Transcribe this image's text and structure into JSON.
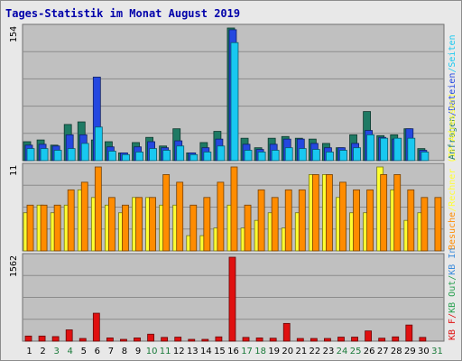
{
  "chart_data": {
    "type": "bar",
    "title": "Tages-Statistik im Monat August 2019",
    "x": [
      "1",
      "2",
      "3",
      "4",
      "5",
      "6",
      "7",
      "8",
      "9",
      "10",
      "11",
      "12",
      "13",
      "14",
      "15",
      "16",
      "17",
      "18",
      "19",
      "20",
      "21",
      "22",
      "23",
      "24",
      "25",
      "26",
      "27",
      "28",
      "29",
      "30",
      "31"
    ],
    "weekend_days": [
      "3",
      "4",
      "10",
      "11",
      "17",
      "18",
      "24",
      "25",
      "31"
    ],
    "colors": {
      "anfragen": "#1e7a64",
      "dateien": "#2448e0",
      "seiten": "#18c8f0",
      "rechner": "#ffff30",
      "besuche": "#ff8c00",
      "kb_f": "#e01010",
      "kb_in": "#3c8cdc",
      "kb_out": "#28a050",
      "weekday_label": "#000000",
      "weekend_label": "#1a7a3a",
      "title": "#0000aa"
    },
    "panels": [
      {
        "id": "hits",
        "ymax_label": "154",
        "ymax": 154,
        "series": [
          {
            "key": "anfragen",
            "values": [
              22,
              24,
              18,
              42,
              45,
              24,
              22,
              9,
              21,
              27,
              17,
              37,
              9,
              21,
              34,
              154,
              26,
              15,
              26,
              28,
              26,
              25,
              20,
              15,
              30,
              57,
              29,
              30,
              37,
              14,
              0
            ]
          },
          {
            "key": "dateien",
            "values": [
              18,
              19,
              17,
              30,
              30,
              97,
              16,
              9,
              16,
              22,
              15,
              23,
              9,
              15,
              25,
              152,
              19,
              13,
              19,
              25,
              25,
              20,
              15,
              15,
              20,
              35,
              27,
              25,
              37,
              12,
              0
            ]
          },
          {
            "key": "seiten",
            "values": [
              14,
              14,
              12,
              14,
              20,
              39,
              11,
              7,
              10,
              14,
              12,
              17,
              7,
              10,
              17,
              137,
              12,
              10,
              12,
              15,
              14,
              13,
              10,
              12,
              15,
              30,
              26,
              26,
              26,
              10,
              0
            ]
          }
        ]
      },
      {
        "id": "visits",
        "ymax_label": "11",
        "ymax": 11,
        "series": [
          {
            "key": "rechner",
            "values": [
              5,
              6,
              5,
              6,
              8,
              7,
              6,
              5,
              7,
              7,
              6,
              6,
              2,
              2,
              3,
              6,
              3,
              4,
              5,
              3,
              5,
              10,
              10,
              7,
              5,
              5,
              11,
              8,
              4,
              5,
              0
            ]
          },
          {
            "key": "besuche",
            "values": [
              6,
              6,
              6,
              8,
              9,
              11,
              7,
              6,
              7,
              7,
              10,
              9,
              6,
              7,
              9,
              11,
              6,
              8,
              7,
              8,
              8,
              10,
              10,
              9,
              8,
              8,
              10,
              10,
              8,
              7,
              7
            ]
          }
        ]
      },
      {
        "id": "kbytes",
        "ymax_label": "1562",
        "ymax": 1562,
        "series": [
          {
            "key": "kb_f",
            "values": [
              95,
              95,
              85,
              210,
              50,
              520,
              60,
              25,
              60,
              130,
              70,
              75,
              25,
              25,
              80,
              1562,
              70,
              60,
              55,
              330,
              50,
              50,
              50,
              75,
              75,
              190,
              55,
              80,
              300,
              70,
              0
            ]
          }
        ]
      }
    ],
    "legends": [
      {
        "panel": "hits",
        "items": [
          {
            "label": "Anfragen",
            "color": "anfragen"
          },
          {
            "label": "/",
            "color": "dateien"
          },
          {
            "label": "Dateien",
            "color": "dateien"
          },
          {
            "label": "/",
            "color": "seiten"
          },
          {
            "label": "Seiten",
            "color": "seiten"
          }
        ]
      },
      {
        "panel": "visits",
        "items": [
          {
            "label": "Besuche",
            "color": "besuche"
          },
          {
            "label": "/",
            "color": "rechner"
          },
          {
            "label": "Rechner (IP-Adressen)",
            "color": "rechner"
          }
        ]
      },
      {
        "panel": "kbytes",
        "items": [
          {
            "label": "KB F",
            "color": "kb_f"
          },
          {
            "label": "/",
            "color": "kb_f"
          },
          {
            "label": "KB Out",
            "color": "kb_out"
          },
          {
            "label": "/",
            "color": "kb_out"
          },
          {
            "label": "KB In",
            "color": "kb_in"
          }
        ]
      }
    ]
  }
}
